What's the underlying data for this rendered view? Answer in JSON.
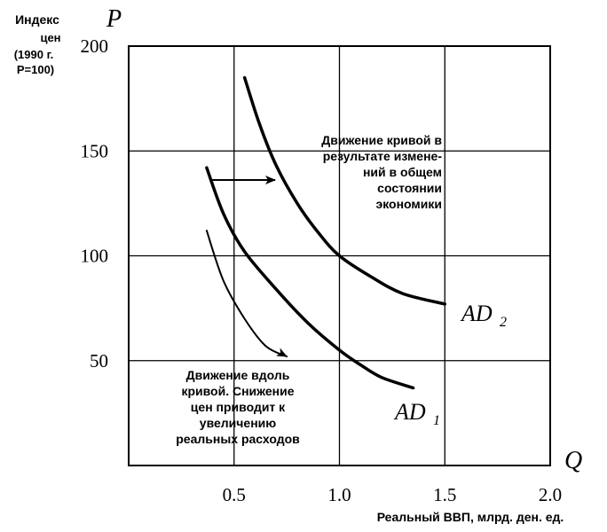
{
  "chart_data": {
    "type": "line",
    "y_axis_symbol": "P",
    "x_axis_symbol": "Q",
    "ylabel_lines": [
      "Индекс",
      "цен",
      "(1990 г.",
      "P=100)"
    ],
    "xlabel": "Реальный ВВП, млрд. ден. ед.",
    "x_ticks": [
      {
        "value": 0.5,
        "label": "0.5"
      },
      {
        "value": 1.0,
        "label": "1.0"
      },
      {
        "value": 1.5,
        "label": "1.5"
      },
      {
        "value": 2.0,
        "label": "2.0"
      }
    ],
    "y_ticks": [
      {
        "value": 50,
        "label": "50"
      },
      {
        "value": 100,
        "label": "100"
      },
      {
        "value": 150,
        "label": "150"
      },
      {
        "value": 200,
        "label": "200"
      }
    ],
    "xlim": [
      0,
      2.0
    ],
    "ylim": [
      0,
      200
    ],
    "grid": true,
    "series": [
      {
        "name": "AD1",
        "x": [
          0.37,
          0.45,
          0.55,
          0.7,
          0.85,
          1.0,
          1.1,
          1.2,
          1.35
        ],
        "y": [
          142,
          120,
          102,
          84,
          68,
          55,
          48,
          42,
          37
        ]
      },
      {
        "name": "AD2",
        "x": [
          0.55,
          0.62,
          0.7,
          0.8,
          0.9,
          1.0,
          1.15,
          1.3,
          1.5
        ],
        "y": [
          185,
          163,
          143,
          125,
          111,
          100,
          90,
          82,
          77
        ]
      },
      {
        "name": "movement-along-curve",
        "x": [
          0.37,
          0.45,
          0.55,
          0.65,
          0.75
        ],
        "y": [
          112,
          88,
          70,
          57,
          52
        ]
      }
    ],
    "series_labels": [
      {
        "series": "AD1",
        "letters": "AD",
        "subscript": "1"
      },
      {
        "series": "AD2",
        "letters": "AD",
        "subscript": "2"
      }
    ],
    "annotations": [
      {
        "id": "shift",
        "lines": [
          "Движение кривой в",
          "результате измене-",
          "ний в общем",
          "состоянии",
          "экономики"
        ]
      },
      {
        "id": "along",
        "lines": [
          "Движение вдоль",
          "кривой. Снижение",
          "цен приводит к",
          "увеличению",
          "реальных расходов"
        ]
      }
    ]
  }
}
